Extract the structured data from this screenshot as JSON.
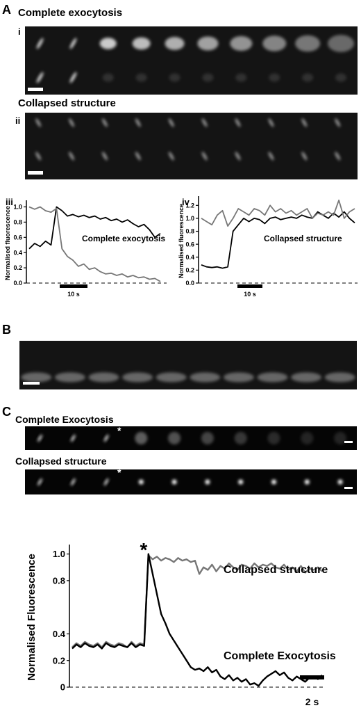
{
  "figure": {
    "panel_a": {
      "label": "A",
      "sub_i": "i",
      "title_i": "Complete exocytosis",
      "sub_ii": "ii",
      "title_ii": "Collapsed structure",
      "sub_iii": "iii",
      "sub_iv": "iv"
    },
    "panel_b": {
      "label": "B"
    },
    "panel_c": {
      "label": "C",
      "title_1": "Complete Exocytosis",
      "title_2": "Collapsed structure",
      "asterisk_1": "*",
      "asterisk_2": "*"
    }
  },
  "chart_data": [
    {
      "type": "line",
      "ylabel": "Normalised fluorescence",
      "annotations": [
        "Complete exocytosis"
      ],
      "scale_bar_label": "10 s",
      "ylim": [
        0,
        1.05
      ],
      "yticks": [
        {
          "value": 0,
          "label": "0.0"
        },
        0.2,
        0.4,
        0.6,
        0.8,
        {
          "value": 1,
          "label": "1.0"
        }
      ],
      "series": [
        {
          "color": "#000000",
          "values": [
            0.45,
            0.52,
            0.48,
            0.55,
            0.5,
            1.0,
            0.95,
            0.88,
            0.9,
            0.87,
            0.89,
            0.86,
            0.88,
            0.84,
            0.86,
            0.82,
            0.84,
            0.8,
            0.83,
            0.78,
            0.74,
            0.77,
            0.7,
            0.6,
            0.65
          ]
        },
        {
          "color": "#777777",
          "values": [
            1.0,
            0.97,
            1.0,
            0.95,
            0.93,
            0.98,
            0.45,
            0.35,
            0.3,
            0.22,
            0.25,
            0.18,
            0.2,
            0.15,
            0.12,
            0.13,
            0.1,
            0.12,
            0.08,
            0.1,
            0.07,
            0.08,
            0.05,
            0.06,
            0.02
          ]
        }
      ]
    },
    {
      "type": "line",
      "ylabel": "Normalised fluorescence",
      "annotations": [
        "Collapsed structure"
      ],
      "scale_bar_label": "10 s",
      "ylim": [
        0,
        1.3
      ],
      "yticks": [
        {
          "value": 0,
          "label": "0.0"
        },
        0.2,
        0.4,
        0.6,
        0.8,
        {
          "value": 1,
          "label": "1.0"
        },
        1.2
      ],
      "series": [
        {
          "color": "#000000",
          "values": [
            0.28,
            0.25,
            0.24,
            0.25,
            0.23,
            0.25,
            0.8,
            0.9,
            1.0,
            0.95,
            1.0,
            0.98,
            0.92,
            1.0,
            1.02,
            0.98,
            1.0,
            1.02,
            1.0,
            1.05,
            1.02,
            1.0,
            1.1,
            1.05,
            1.0,
            1.08,
            1.02,
            1.1,
            1.0,
            0.93
          ]
        },
        {
          "color": "#777777",
          "values": [
            1.0,
            0.95,
            0.9,
            1.05,
            1.12,
            0.88,
            1.0,
            1.15,
            1.1,
            1.05,
            1.15,
            1.12,
            1.05,
            1.2,
            1.1,
            1.15,
            1.08,
            1.12,
            1.05,
            1.1,
            1.15,
            1.0,
            1.08,
            1.05,
            1.1,
            1.05,
            1.28,
            1.0,
            1.1,
            1.15
          ]
        }
      ]
    },
    {
      "type": "line",
      "ylabel": "Normalised Fluorescence",
      "annotations": [
        "Collapsed structure",
        "Complete Exocytosis",
        "*"
      ],
      "scale_bar_label": "2 s",
      "ylim": [
        0,
        1.05
      ],
      "yticks": [
        0,
        0.2,
        0.4,
        0.8,
        {
          "value": 1,
          "label": "1.0"
        }
      ],
      "series": [
        {
          "color": "#777777",
          "values": [
            0.3,
            0.33,
            0.31,
            0.34,
            0.32,
            0.31,
            0.33,
            0.3,
            0.34,
            0.32,
            0.31,
            0.33,
            0.32,
            0.3,
            0.34,
            0.31,
            0.33,
            0.32,
            0.99,
            0.96,
            0.98,
            0.95,
            0.97,
            0.96,
            0.94,
            0.97,
            0.95,
            0.96,
            0.94,
            0.95,
            0.85,
            0.9,
            0.88,
            0.92,
            0.87,
            0.91,
            0.89,
            0.93,
            0.9,
            0.88,
            0.92,
            0.91,
            0.89,
            0.93,
            0.9,
            0.92,
            0.91,
            0.93,
            0.9,
            0.89,
            0.92,
            0.88,
            0.9,
            0.87,
            0.91,
            0.86,
            0.89,
            0.88,
            0.9,
            0.87
          ]
        },
        {
          "color": "#000000",
          "values": [
            0.29,
            0.32,
            0.3,
            0.33,
            0.31,
            0.3,
            0.32,
            0.29,
            0.33,
            0.31,
            0.3,
            0.32,
            0.31,
            0.3,
            0.33,
            0.3,
            0.32,
            0.31,
            1.0,
            0.85,
            0.7,
            0.55,
            0.48,
            0.4,
            0.35,
            0.3,
            0.25,
            0.2,
            0.15,
            0.13,
            0.14,
            0.12,
            0.15,
            0.11,
            0.13,
            0.08,
            0.06,
            0.09,
            0.05,
            0.07,
            0.04,
            0.06,
            0.02,
            0.03,
            0.01,
            0.05,
            0.08,
            0.1,
            0.12,
            0.09,
            0.11,
            0.07,
            0.05,
            0.08,
            0.06,
            0.04,
            0.07,
            0.08,
            0.06,
            0.09
          ]
        }
      ]
    }
  ]
}
